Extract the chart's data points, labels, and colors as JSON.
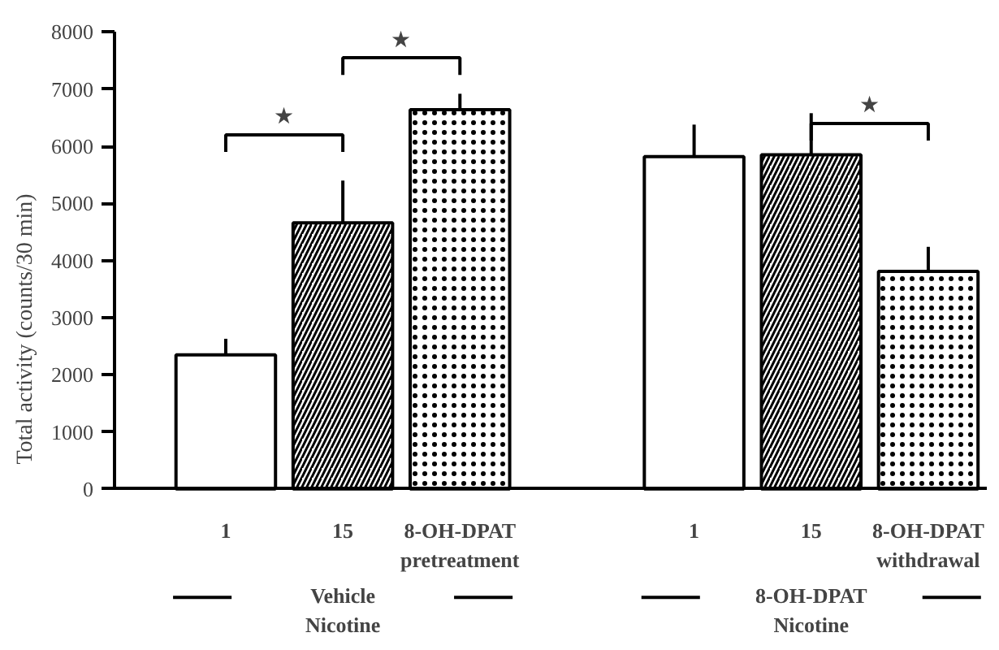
{
  "chart_data": {
    "type": "bar",
    "ylabel": "Total activity (counts/30 min)",
    "categories": [
      "1",
      "15",
      "8-OH-DPAT\npretreatment",
      null,
      "1",
      "15",
      "8-OH-DPAT\nwithdrawal"
    ],
    "values": [
      2350,
      4660,
      6640,
      null,
      5820,
      5850,
      3810
    ],
    "errors": [
      [
        2350,
        2630
      ],
      [
        4660,
        5400
      ],
      [
        6640,
        6920
      ],
      null,
      [
        5820,
        6380
      ],
      [
        5850,
        6580
      ],
      [
        3810,
        4240
      ]
    ],
    "colors": [
      "#ffffff",
      "#000000",
      "#000000",
      null,
      "#ffffff",
      "#000000",
      "#000000"
    ],
    "ylim": [
      0,
      8000
    ],
    "yticks": [
      0,
      1000,
      2000,
      3000,
      4000,
      5000,
      6000,
      7000,
      8000
    ],
    "grid": false,
    "annotations": [
      "Vehicle\nNicotine",
      "8-OH-DPAT\nNicotine",
      "★",
      "★",
      "★"
    ]
  }
}
